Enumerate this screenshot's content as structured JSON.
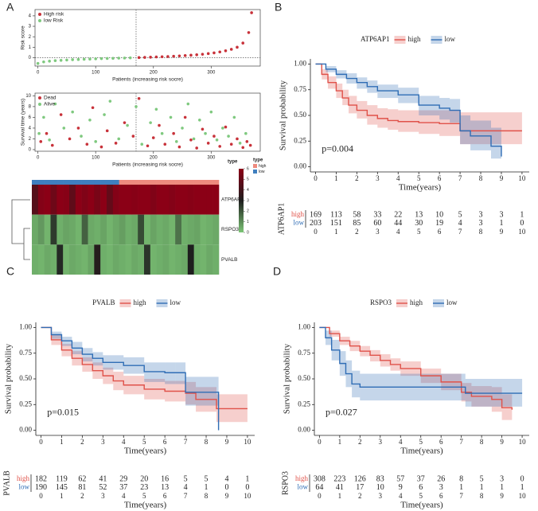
{
  "chart_data": [
    {
      "type": "scatter",
      "panel": "A",
      "ylabel": "Risk score",
      "xlabel": "Patients (increasing risk socre)",
      "xlim": [
        -5,
        385
      ],
      "ylim": [
        -0.8,
        4.6
      ],
      "xticks": [
        0,
        100,
        200,
        300
      ],
      "yticks": [
        0,
        1,
        2,
        3,
        4
      ],
      "vline": 170,
      "hline": 0,
      "series": [
        {
          "name": "High risk",
          "color": "#c8323a",
          "x": [
            175,
            185,
            195,
            205,
            215,
            225,
            235,
            245,
            255,
            265,
            275,
            285,
            295,
            305,
            315,
            325,
            335,
            345,
            355,
            365,
            370
          ],
          "values": [
            0.01,
            0.03,
            0.05,
            0.07,
            0.09,
            0.11,
            0.14,
            0.17,
            0.2,
            0.24,
            0.28,
            0.33,
            0.39,
            0.46,
            0.55,
            0.66,
            0.8,
            1.0,
            1.4,
            2.4,
            4.3
          ]
        },
        {
          "name": "low Risk",
          "color": "#7fc97f",
          "x": [
            0,
            10,
            20,
            30,
            40,
            50,
            60,
            70,
            80,
            90,
            100,
            110,
            120,
            130,
            140,
            150,
            160
          ],
          "values": [
            -0.55,
            -0.4,
            -0.33,
            -0.28,
            -0.25,
            -0.22,
            -0.19,
            -0.17,
            -0.15,
            -0.13,
            -0.11,
            -0.09,
            -0.07,
            -0.06,
            -0.04,
            -0.03,
            -0.01
          ]
        }
      ]
    },
    {
      "type": "scatter",
      "ylabel": "Survival time (years)",
      "xlabel": "Patients (increasing risk socre)",
      "xlim": [
        -5,
        385
      ],
      "ylim": [
        -0.3,
        10.5
      ],
      "xticks": [
        0,
        100,
        200,
        300
      ],
      "yticks": [
        0,
        2,
        4,
        6,
        8,
        10
      ],
      "vline": 170,
      "series": [
        {
          "name": "Dead",
          "color": "#c8323a",
          "x": [
            5,
            15,
            25,
            40,
            55,
            70,
            85,
            95,
            110,
            120,
            135,
            150,
            165,
            175,
            190,
            200,
            210,
            220,
            235,
            245,
            255,
            265,
            275,
            285,
            295,
            305,
            315,
            325,
            335,
            345,
            355,
            362,
            368
          ],
          "values": [
            1.5,
            3,
            0.8,
            6.5,
            2,
            4,
            1,
            7.8,
            0.5,
            3.5,
            1.2,
            5,
            2.5,
            9.5,
            0.7,
            2.2,
            4.5,
            1,
            3,
            0.5,
            6,
            1.8,
            0.3,
            3.8,
            1.2,
            2.5,
            0.6,
            4.2,
            1,
            2,
            0.4,
            1.5,
            0.8
          ]
        },
        {
          "name": "Alive",
          "color": "#7fc97f",
          "x": [
            2,
            10,
            20,
            30,
            45,
            60,
            75,
            90,
            100,
            115,
            125,
            140,
            155,
            170,
            180,
            195,
            205,
            215,
            230,
            240,
            250,
            260,
            270,
            280,
            290,
            300,
            310,
            320,
            330,
            340,
            350,
            360
          ],
          "values": [
            3,
            6,
            1.8,
            8.5,
            4,
            7,
            2.5,
            5.5,
            1.5,
            6.5,
            9,
            2,
            4.5,
            8,
            1,
            5,
            7.5,
            3,
            6,
            1.5,
            4,
            8.5,
            2,
            5.5,
            3,
            7,
            1.8,
            4,
            2.5,
            6,
            1.2,
            3
          ]
        }
      ]
    },
    {
      "type": "heatmap",
      "rows": [
        "ATP6AP1",
        "RSPO3",
        "PVALB"
      ],
      "values": [
        [
          4.5,
          5.8,
          6,
          5.2,
          6,
          5.9,
          4.8,
          6,
          5.7,
          6,
          5.5,
          6,
          4.9,
          5.8,
          6,
          6,
          5.9,
          6,
          6,
          5.7,
          6,
          6,
          5.8,
          6,
          6,
          5.9,
          6,
          6,
          6,
          6
        ],
        [
          0.5,
          0.8,
          0.3,
          2.5,
          0.4,
          0.6,
          0.5,
          0.3,
          1.8,
          0.5,
          0.4,
          0.6,
          0.3,
          0.5,
          0.7,
          0.4,
          0.5,
          2.2,
          0.3,
          0.6,
          0.4,
          0.5,
          0.3,
          1.5,
          0.4,
          0.5,
          0.6,
          0.3,
          0.4,
          0.5
        ],
        [
          0.4,
          0.3,
          0.5,
          0.4,
          2.8,
          0.3,
          0.5,
          0.4,
          0.3,
          0.6,
          3.2,
          0.4,
          0.3,
          0.5,
          0.4,
          0.3,
          0.5,
          0.4,
          2.6,
          0.3,
          0.4,
          0.5,
          0.3,
          0.4,
          0.5,
          3,
          0.4,
          0.3,
          0.5,
          0.4
        ]
      ],
      "column_types": [
        1,
        1,
        1,
        1,
        1,
        1,
        1,
        1,
        1,
        1,
        1,
        1,
        1,
        1,
        0,
        0,
        0,
        0,
        0,
        0,
        0,
        0,
        0,
        0,
        0,
        0,
        0,
        0,
        0,
        0
      ],
      "annotation": {
        "name": "type",
        "levels": [
          {
            "name": "high",
            "color": "#ee8a7e"
          },
          {
            "name": "low",
            "color": "#3f7fbf"
          }
        ]
      },
      "colorscale": [
        "#7cc576",
        "#1e1e1e",
        "#8b0016"
      ],
      "colorlim": [
        0,
        6
      ],
      "colorbar_ticks": [
        0,
        1,
        2,
        3,
        4,
        5,
        6
      ]
    },
    {
      "type": "km",
      "panel": "B",
      "gene": "ATP6AP1",
      "pvalue": "p=0.004",
      "xlabel": "Time(years)",
      "ylabel": "Survival probability",
      "xlim": [
        -0.25,
        10.35
      ],
      "ylim": [
        -0.05,
        1.05
      ],
      "xticks": [
        0,
        1,
        2,
        3,
        4,
        5,
        6,
        7,
        8,
        9,
        10
      ],
      "yticks": [
        {
          "value": 0,
          "label": "0.00"
        },
        {
          "value": 0.25,
          "label": "0.25"
        },
        {
          "value": 0.5,
          "label": "0.50"
        },
        {
          "value": 0.75,
          "label": "0.75"
        },
        {
          "value": 1,
          "label": "1.00"
        }
      ],
      "series": [
        {
          "name": "high",
          "color": "#e0524a",
          "x": [
            0,
            0.3,
            0.6,
            1,
            1.3,
            1.6,
            2,
            2.5,
            3,
            3.5,
            4,
            5,
            6,
            6.9,
            7,
            9,
            10
          ],
          "values": [
            1,
            0.9,
            0.82,
            0.74,
            0.67,
            0.6,
            0.55,
            0.5,
            0.47,
            0.45,
            0.44,
            0.43,
            0.42,
            0.42,
            0.35,
            0.35,
            0.35
          ],
          "upper": [
            1,
            0.95,
            0.88,
            0.81,
            0.75,
            0.69,
            0.64,
            0.6,
            0.57,
            0.56,
            0.55,
            0.55,
            0.55,
            0.55,
            0.53,
            0.53,
            0.53
          ],
          "lower": [
            1,
            0.85,
            0.76,
            0.67,
            0.6,
            0.52,
            0.47,
            0.41,
            0.38,
            0.36,
            0.34,
            0.32,
            0.3,
            0.3,
            0.22,
            0.22,
            0.22
          ],
          "at_risk": [
            169,
            113,
            58,
            33,
            22,
            13,
            10,
            5,
            3,
            3,
            1
          ]
        },
        {
          "name": "low",
          "color": "#2f6db5",
          "x": [
            0,
            0.5,
            1,
            1.5,
            2,
            2.5,
            3,
            4,
            5,
            6,
            6.5,
            7,
            7.5,
            8.5,
            9
          ],
          "values": [
            1,
            0.95,
            0.9,
            0.86,
            0.82,
            0.78,
            0.74,
            0.7,
            0.6,
            0.57,
            0.55,
            0.35,
            0.3,
            0.2,
            0.1
          ],
          "upper": [
            1,
            0.98,
            0.94,
            0.91,
            0.87,
            0.84,
            0.8,
            0.77,
            0.69,
            0.67,
            0.66,
            0.5,
            0.45,
            0.38,
            0.3
          ],
          "lower": [
            1,
            0.92,
            0.86,
            0.81,
            0.76,
            0.72,
            0.67,
            0.62,
            0.5,
            0.46,
            0.43,
            0.22,
            0.16,
            0.08,
            0.02
          ],
          "at_risk": [
            203,
            151,
            85,
            60,
            44,
            30,
            19,
            4,
            3,
            1,
            0
          ]
        }
      ]
    },
    {
      "type": "km",
      "panel": "C",
      "gene": "PVALB",
      "pvalue": "p=0.015",
      "xlabel": "Time(years)",
      "ylabel": "Survival probability",
      "xlim": [
        -0.25,
        10.35
      ],
      "ylim": [
        -0.05,
        1.05
      ],
      "xticks": [
        0,
        1,
        2,
        3,
        4,
        5,
        6,
        7,
        8,
        9,
        10
      ],
      "yticks": [
        {
          "value": 0,
          "label": "0.00"
        },
        {
          "value": 0.25,
          "label": "0.25"
        },
        {
          "value": 0.5,
          "label": "0.50"
        },
        {
          "value": 0.75,
          "label": "0.75"
        },
        {
          "value": 1,
          "label": "1.00"
        }
      ],
      "series": [
        {
          "name": "high",
          "color": "#e0524a",
          "x": [
            0,
            0.5,
            1,
            1.5,
            2,
            2.5,
            3,
            3.5,
            4,
            5,
            6,
            7,
            7.5,
            8.5,
            10
          ],
          "values": [
            1,
            0.88,
            0.78,
            0.7,
            0.64,
            0.58,
            0.53,
            0.48,
            0.44,
            0.4,
            0.38,
            0.36,
            0.3,
            0.21,
            0.21
          ],
          "upper": [
            1,
            0.93,
            0.84,
            0.77,
            0.71,
            0.66,
            0.61,
            0.57,
            0.53,
            0.5,
            0.48,
            0.47,
            0.42,
            0.35,
            0.35
          ],
          "lower": [
            1,
            0.83,
            0.72,
            0.63,
            0.57,
            0.5,
            0.45,
            0.39,
            0.35,
            0.3,
            0.28,
            0.25,
            0.18,
            0.08,
            0.08
          ],
          "at_risk": [
            182,
            119,
            62,
            41,
            29,
            20,
            16,
            5,
            5,
            4,
            1
          ]
        },
        {
          "name": "low",
          "color": "#2f6db5",
          "x": [
            0,
            0.5,
            1,
            1.5,
            2,
            2.5,
            3,
            4,
            5,
            6,
            6.5,
            7,
            8.5,
            8.6
          ],
          "values": [
            1,
            0.93,
            0.87,
            0.8,
            0.74,
            0.7,
            0.66,
            0.63,
            0.57,
            0.56,
            0.56,
            0.37,
            0.37,
            0
          ],
          "upper": [
            1,
            0.96,
            0.91,
            0.86,
            0.8,
            0.76,
            0.73,
            0.71,
            0.66,
            0.66,
            0.66,
            0.52,
            0.52,
            0.52
          ],
          "lower": [
            1,
            0.89,
            0.82,
            0.74,
            0.67,
            0.63,
            0.59,
            0.55,
            0.47,
            0.45,
            0.45,
            0.24,
            0.24,
            0
          ],
          "at_risk": [
            190,
            145,
            81,
            52,
            37,
            23,
            13,
            4,
            1,
            0,
            0
          ]
        }
      ]
    },
    {
      "type": "km",
      "panel": "D",
      "gene": "RSPO3",
      "pvalue": "p=0.027",
      "xlabel": "Time(years)",
      "ylabel": "Survival probability",
      "xlim": [
        -0.25,
        10.35
      ],
      "ylim": [
        -0.05,
        1.05
      ],
      "xticks": [
        0,
        1,
        2,
        3,
        4,
        5,
        6,
        7,
        8,
        9,
        10
      ],
      "yticks": [
        {
          "value": 0,
          "label": "0.00"
        },
        {
          "value": 0.25,
          "label": "0.25"
        },
        {
          "value": 0.5,
          "label": "0.50"
        },
        {
          "value": 0.75,
          "label": "0.75"
        },
        {
          "value": 1,
          "label": "1.00"
        }
      ],
      "series": [
        {
          "name": "high",
          "color": "#e0524a",
          "x": [
            0,
            0.5,
            1,
            1.5,
            2,
            2.5,
            3,
            3.5,
            4,
            5,
            6,
            7,
            7.5,
            8.5,
            9,
            9.5
          ],
          "values": [
            1,
            0.94,
            0.87,
            0.82,
            0.77,
            0.73,
            0.68,
            0.64,
            0.6,
            0.53,
            0.47,
            0.37,
            0.33,
            0.3,
            0.22,
            0.2
          ],
          "upper": [
            1,
            0.97,
            0.91,
            0.87,
            0.82,
            0.78,
            0.74,
            0.7,
            0.67,
            0.6,
            0.55,
            0.46,
            0.43,
            0.42,
            0.35,
            0.35
          ],
          "lower": [
            1,
            0.91,
            0.83,
            0.77,
            0.72,
            0.67,
            0.62,
            0.58,
            0.53,
            0.46,
            0.39,
            0.28,
            0.23,
            0.18,
            0.1,
            0.08
          ],
          "at_risk": [
            308,
            223,
            126,
            83,
            57,
            37,
            26,
            8,
            5,
            3,
            0
          ]
        },
        {
          "name": "low",
          "color": "#2f6db5",
          "x": [
            0,
            0.3,
            0.6,
            1,
            1.3,
            1.6,
            2,
            7.2,
            10
          ],
          "values": [
            1,
            0.9,
            0.78,
            0.65,
            0.55,
            0.45,
            0.42,
            0.36,
            0.36
          ],
          "upper": [
            1,
            0.97,
            0.88,
            0.77,
            0.68,
            0.58,
            0.55,
            0.5,
            0.5
          ],
          "lower": [
            1,
            0.83,
            0.68,
            0.53,
            0.42,
            0.32,
            0.29,
            0.23,
            0.23
          ],
          "at_risk": [
            64,
            41,
            17,
            10,
            9,
            6,
            3,
            1,
            1,
            1,
            1
          ]
        }
      ]
    }
  ]
}
